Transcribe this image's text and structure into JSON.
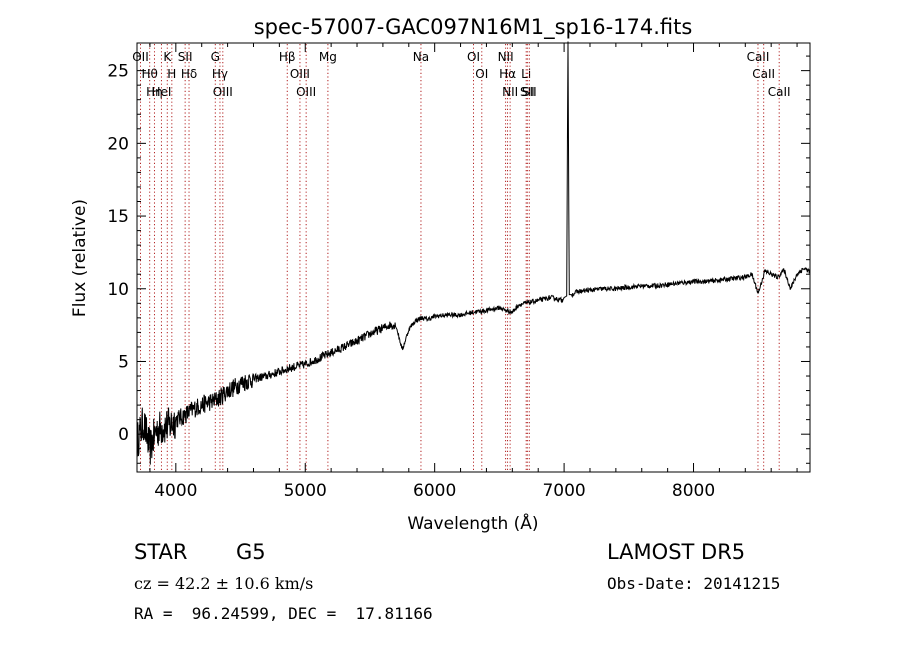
{
  "chart_data": {
    "type": "line",
    "title": "spec-57007-GAC097N16M1_sp16-174.fits",
    "xlabel": "Wavelength (Å)",
    "ylabel": "Flux (relative)",
    "xlim": [
      3700,
      8900
    ],
    "ylim": [
      -2.6,
      26.9
    ],
    "xticks": [
      4000,
      5000,
      6000,
      7000,
      8000
    ],
    "xtick_labels": [
      "4000",
      "5000",
      "6000",
      "7000",
      "8000"
    ],
    "yticks": [
      0,
      5,
      10,
      15,
      20,
      25
    ],
    "ytick_labels": [
      "0",
      "5",
      "10",
      "15",
      "20",
      "25"
    ],
    "grid": false,
    "series": [
      {
        "x": [
          3700,
          3750,
          3800,
          3850,
          3900,
          3950,
          4000,
          4050,
          4100,
          4150,
          4200,
          4250,
          4300,
          4350,
          4400,
          4450,
          4500,
          4600,
          4700,
          4800,
          4900,
          5000,
          5100,
          5200,
          5300,
          5400,
          5500,
          5600,
          5650,
          5700,
          5750,
          5800,
          5850,
          5900,
          5950,
          6000,
          6100,
          6200,
          6300,
          6400,
          6500,
          6550,
          6600,
          6650,
          6700,
          6800,
          6900,
          6990,
          7000,
          7020,
          7030,
          7040,
          7060,
          7100,
          7200,
          7300,
          7400,
          7500,
          7600,
          7700,
          7800,
          7900,
          8000,
          8100,
          8200,
          8300,
          8400,
          8450,
          8500,
          8550,
          8600,
          8650,
          8700,
          8750,
          8800,
          8850,
          8900
        ],
        "values": [
          -0.5,
          0.8,
          -1.0,
          0.3,
          0.5,
          0.6,
          1.0,
          1.2,
          1.5,
          1.8,
          2.0,
          2.2,
          2.3,
          2.6,
          3.0,
          3.2,
          3.5,
          3.8,
          4.0,
          4.3,
          4.6,
          4.8,
          5.2,
          5.6,
          6.0,
          6.4,
          6.9,
          7.3,
          7.5,
          7.5,
          5.8,
          7.2,
          7.8,
          8.0,
          7.9,
          8.1,
          8.2,
          8.2,
          8.4,
          8.5,
          8.7,
          8.5,
          8.4,
          8.9,
          9.0,
          9.2,
          9.4,
          9.2,
          9.4,
          9.5,
          27.0,
          9.6,
          9.6,
          9.8,
          9.9,
          10.0,
          10.0,
          10.1,
          10.2,
          10.2,
          10.3,
          10.4,
          10.5,
          10.5,
          10.6,
          10.7,
          10.8,
          11.0,
          9.7,
          11.2,
          11.0,
          10.8,
          11.3,
          10.0,
          11.0,
          11.4,
          11.2
        ]
      }
    ],
    "line_marks": [
      {
        "wavelength": 3727,
        "label": "OII"
      },
      {
        "wavelength": 3798,
        "label": "Hθ"
      },
      {
        "wavelength": 3835,
        "label": "Hη"
      },
      {
        "wavelength": 3889,
        "label": "HeI"
      },
      {
        "wavelength": 3934,
        "label": "K"
      },
      {
        "wavelength": 3969,
        "label": "H"
      },
      {
        "wavelength": 4072,
        "label": "SII"
      },
      {
        "wavelength": 4102,
        "label": "Hδ"
      },
      {
        "wavelength": 4305,
        "label": "G"
      },
      {
        "wavelength": 4341,
        "label": "Hγ"
      },
      {
        "wavelength": 4363,
        "label": "OIII"
      },
      {
        "wavelength": 4861,
        "label": "Hβ"
      },
      {
        "wavelength": 4959,
        "label": "OIII"
      },
      {
        "wavelength": 5007,
        "label": "OIII"
      },
      {
        "wavelength": 5175,
        "label": "Mg"
      },
      {
        "wavelength": 5894,
        "label": "Na"
      },
      {
        "wavelength": 6300,
        "label": "OI"
      },
      {
        "wavelength": 6364,
        "label": "OI"
      },
      {
        "wavelength": 6548,
        "label": "NII"
      },
      {
        "wavelength": 6563,
        "label": "Hα"
      },
      {
        "wavelength": 6583,
        "label": "NII"
      },
      {
        "wavelength": 6707,
        "label": "Li"
      },
      {
        "wavelength": 6716,
        "label": "SII"
      },
      {
        "wavelength": 6731,
        "label": "SII"
      },
      {
        "wavelength": 8498,
        "label": "CaII"
      },
      {
        "wavelength": 8542,
        "label": "CaII"
      },
      {
        "wavelength": 8662,
        "label": "CaII"
      }
    ]
  },
  "info": {
    "object_class": "STAR",
    "subclass": "G5",
    "survey": "LAMOST DR5",
    "cz": "cz = 42.2 ± 10.6 km/s",
    "obs_date": "Obs-Date: 20141215",
    "coords": "RA =  96.24599, DEC =  17.81166"
  }
}
